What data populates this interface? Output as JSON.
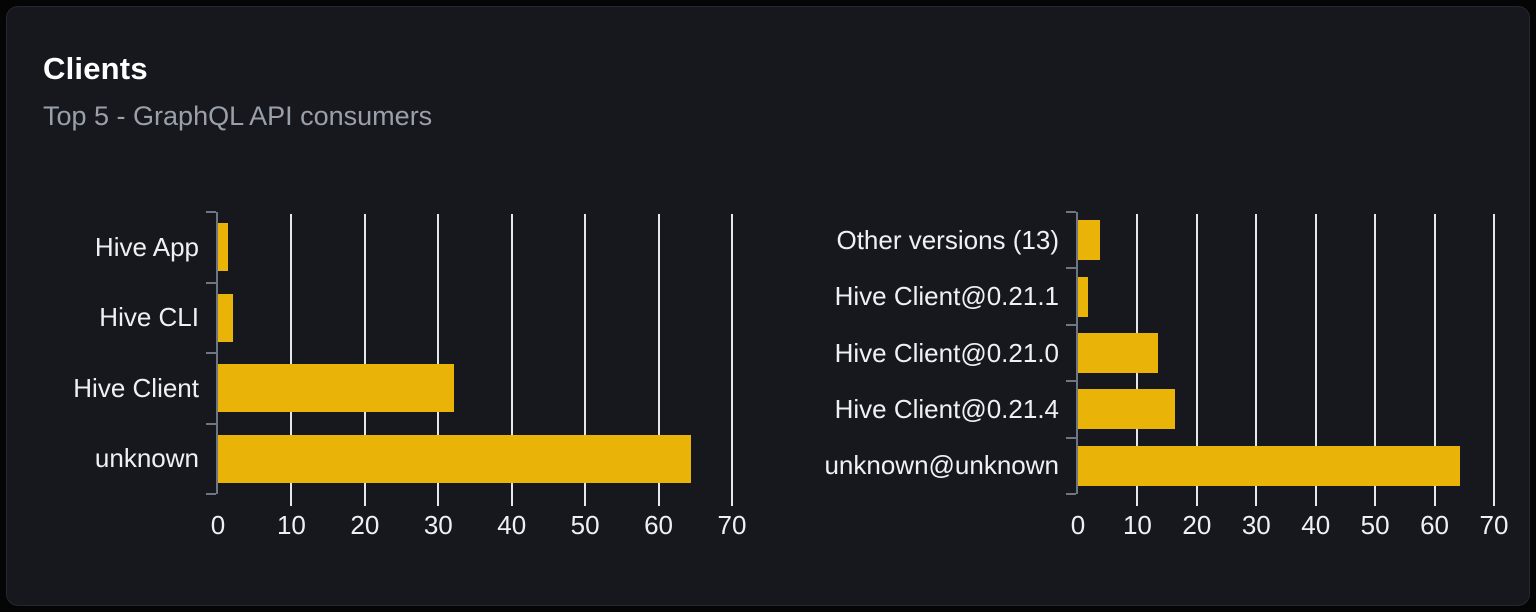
{
  "card": {
    "title": "Clients",
    "subtitle": "Top 5 - GraphQL API consumers"
  },
  "colors": {
    "bar": "#eab308",
    "card_bg": "#16181d",
    "page_bg": "#050506",
    "grid": "#e3e7ee",
    "axis": "#6e7681",
    "text": "#eef1f4",
    "subtitle_text": "#9aa0aa",
    "title_text": "#ffffff"
  },
  "chart_data": [
    {
      "type": "bar",
      "orientation": "horizontal",
      "categories": [
        "Hive App",
        "Hive CLI",
        "Hive Client",
        "unknown"
      ],
      "values": [
        1.4,
        2,
        32.1,
        64.4
      ],
      "xlim": [
        0,
        70
      ],
      "xticks": [
        0,
        10,
        20,
        30,
        40,
        50,
        60,
        70
      ],
      "grid": true,
      "legend": "none",
      "bar_color": "#eab308"
    },
    {
      "type": "bar",
      "orientation": "horizontal",
      "categories": [
        "Other versions (13)",
        "Hive Client@0.21.1",
        "Hive Client@0.21.0",
        "Hive Client@0.21.4",
        "unknown@unknown"
      ],
      "values": [
        3.7,
        1.6,
        13.5,
        16.3,
        64.3
      ],
      "xlim": [
        0,
        70
      ],
      "xticks": [
        0,
        10,
        20,
        30,
        40,
        50,
        60,
        70
      ],
      "grid": true,
      "legend": "none",
      "bar_color": "#eab308"
    }
  ]
}
